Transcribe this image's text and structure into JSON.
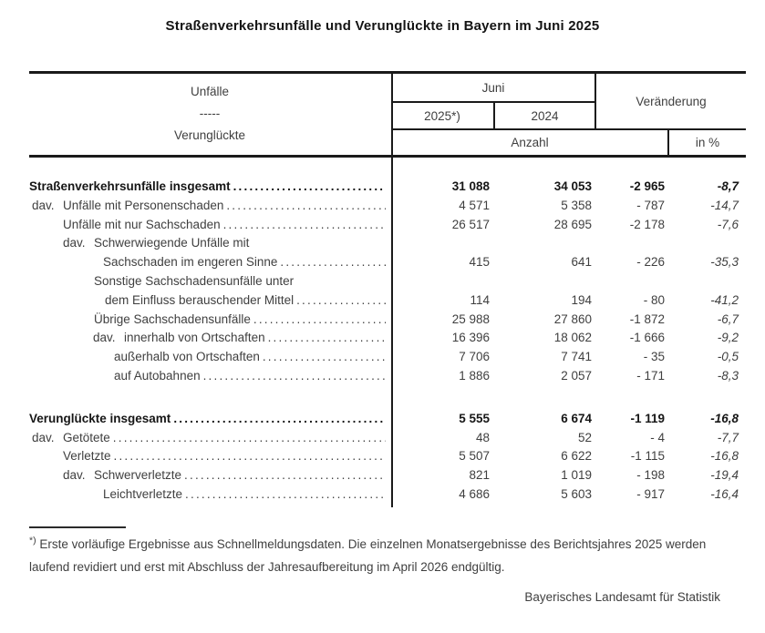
{
  "title": "Straßenverkehrsunfälle und Verunglückte in Bayern im Juni 2025",
  "table": {
    "header": {
      "label_line1": "Unfälle",
      "label_line2": "-----",
      "label_line3": "Verunglückte",
      "month_group": "Juni",
      "year_current": "2025*)",
      "year_previous": "2024",
      "change_group": "Veränderung",
      "unit_count": "Anzahl",
      "unit_percent": "in %"
    },
    "sections": [
      {
        "rows": [
          {
            "prefix": "",
            "label": "Straßenverkehrsunfälle insgesamt",
            "dots": true,
            "bold": true,
            "indent": 0,
            "v2025": "31 088",
            "v2024": "34 053",
            "diff": "-2 965",
            "pct": "-8,7"
          },
          {
            "prefix": "dav.",
            "label": "Unfälle mit Personenschaden",
            "dots": true,
            "bold": false,
            "indent": 37,
            "v2025": "4 571",
            "v2024": "5 358",
            "diff": "- 787",
            "pct": "-14,7"
          },
          {
            "prefix": "",
            "label": "Unfälle mit nur Sachschaden",
            "dots": true,
            "bold": false,
            "indent": 37,
            "v2025": "26 517",
            "v2024": "28 695",
            "diff": "-2 178",
            "pct": "-7,6"
          },
          {
            "prefix": "dav.",
            "label": "Schwerwiegende Unfälle mit",
            "dots": false,
            "bold": false,
            "indent": 71,
            "v2025": "",
            "v2024": "",
            "diff": "",
            "pct": ""
          },
          {
            "prefix": "",
            "label": "Sachschaden im engeren Sinne",
            "dots": true,
            "bold": false,
            "indent": 81,
            "v2025": "415",
            "v2024": "641",
            "diff": "- 226",
            "pct": "-35,3"
          },
          {
            "prefix": "",
            "label": "Sonstige Sachschadensunfälle unter",
            "dots": false,
            "bold": false,
            "indent": 71,
            "v2025": "",
            "v2024": "",
            "diff": "",
            "pct": ""
          },
          {
            "prefix": "",
            "label": "dem Einfluss berauschender Mittel",
            "dots": true,
            "bold": false,
            "indent": 83,
            "v2025": "114",
            "v2024": "194",
            "diff": "- 80",
            "pct": "-41,2"
          },
          {
            "prefix": "",
            "label": "Übrige Sachschadensunfälle",
            "dots": true,
            "bold": false,
            "indent": 71,
            "v2025": "25 988",
            "v2024": "27 860",
            "diff": "-1 872",
            "pct": "-6,7"
          },
          {
            "prefix": "dav.",
            "label": "innerhalb von Ortschaften",
            "dots": true,
            "bold": false,
            "indent": 104,
            "v2025": "16 396",
            "v2024": "18 062",
            "diff": "-1 666",
            "pct": "-9,2"
          },
          {
            "prefix": "",
            "label": "außerhalb von Ortschaften",
            "dots": true,
            "bold": false,
            "indent": 93,
            "v2025": "7 706",
            "v2024": "7 741",
            "diff": "- 35",
            "pct": "-0,5"
          },
          {
            "prefix": "",
            "label": "auf Autobahnen",
            "dots": true,
            "bold": false,
            "indent": 93,
            "v2025": "1 886",
            "v2024": "2 057",
            "diff": "- 171",
            "pct": "-8,3"
          }
        ]
      },
      {
        "rows": [
          {
            "prefix": "",
            "label": "Verunglückte insgesamt",
            "dots": true,
            "bold": true,
            "indent": 0,
            "v2025": "5 555",
            "v2024": "6 674",
            "diff": "-1 119",
            "pct": "-16,8"
          },
          {
            "prefix": "dav.",
            "label": "Getötete",
            "dots": true,
            "bold": false,
            "indent": 37,
            "v2025": "48",
            "v2024": "52",
            "diff": "- 4",
            "pct": "-7,7"
          },
          {
            "prefix": "",
            "label": "Verletzte",
            "dots": true,
            "bold": false,
            "indent": 37,
            "v2025": "5 507",
            "v2024": "6 622",
            "diff": "-1 115",
            "pct": "-16,8"
          },
          {
            "prefix": "dav.",
            "label": "Schwerverletzte",
            "dots": true,
            "bold": false,
            "indent": 71,
            "v2025": "821",
            "v2024": "1 019",
            "diff": "- 198",
            "pct": "-19,4"
          },
          {
            "prefix": "",
            "label": "Leichtverletzte",
            "dots": true,
            "bold": false,
            "indent": 81,
            "v2025": "4 686",
            "v2024": "5 603",
            "diff": "- 917",
            "pct": "-16,4"
          }
        ]
      }
    ]
  },
  "footnote": {
    "marker": "*)",
    "text": "Erste vorläufige Ergebnisse aus Schnellmeldungsdaten. Die einzelnen Monatsergebnisse des Berichtsjahres 2025 werden laufend revidiert und erst mit Abschluss der Jahresaufbereitung im April 2026 endgültig."
  },
  "footer": "Bayerisches Landesamt für Statistik"
}
